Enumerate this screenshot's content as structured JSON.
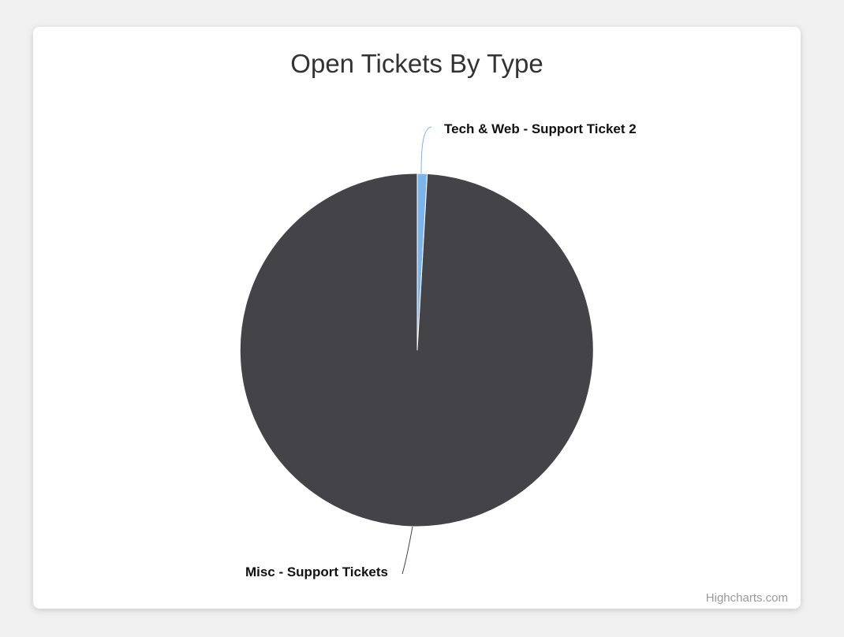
{
  "chart": {
    "credit_label": "Highcharts.com"
  },
  "chart_data": {
    "type": "pie",
    "title": "Open Tickets By Type",
    "legend": "none",
    "start_angle_deg": 0,
    "direction": "clockwise",
    "series": [
      {
        "name": "Open Tickets By Type",
        "points": [
          {
            "name": "Tech & Web - Support Ticket 2",
            "percent": 0.9,
            "color": "#7cb5ec",
            "label_position": "top-right"
          },
          {
            "name": "Misc - Support Tickets",
            "percent": 99.1,
            "color": "#434348",
            "label_position": "bottom-left"
          }
        ]
      }
    ],
    "colors": {
      "slice_border": "#ffffff",
      "title": "#333333",
      "data_label": "#111111",
      "credit": "#999999",
      "page_background": "#f0f0f1",
      "card_background": "#ffffff"
    }
  }
}
